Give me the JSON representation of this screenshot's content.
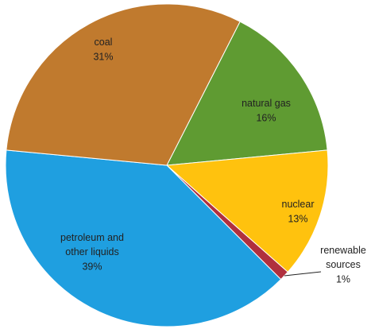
{
  "chart_data": {
    "type": "pie",
    "categories": [
      "natural gas",
      "nuclear",
      "renewable\nsources",
      "petroleum and\nother liquids",
      "coal"
    ],
    "values": [
      16,
      13,
      1,
      39,
      31
    ],
    "value_labels": [
      "16%",
      "13%",
      "1%",
      "39%",
      "31%"
    ],
    "colors": [
      "#5f9b32",
      "#ffc20e",
      "#b0303e",
      "#1f9fe0",
      "#c07a2e"
    ]
  }
}
